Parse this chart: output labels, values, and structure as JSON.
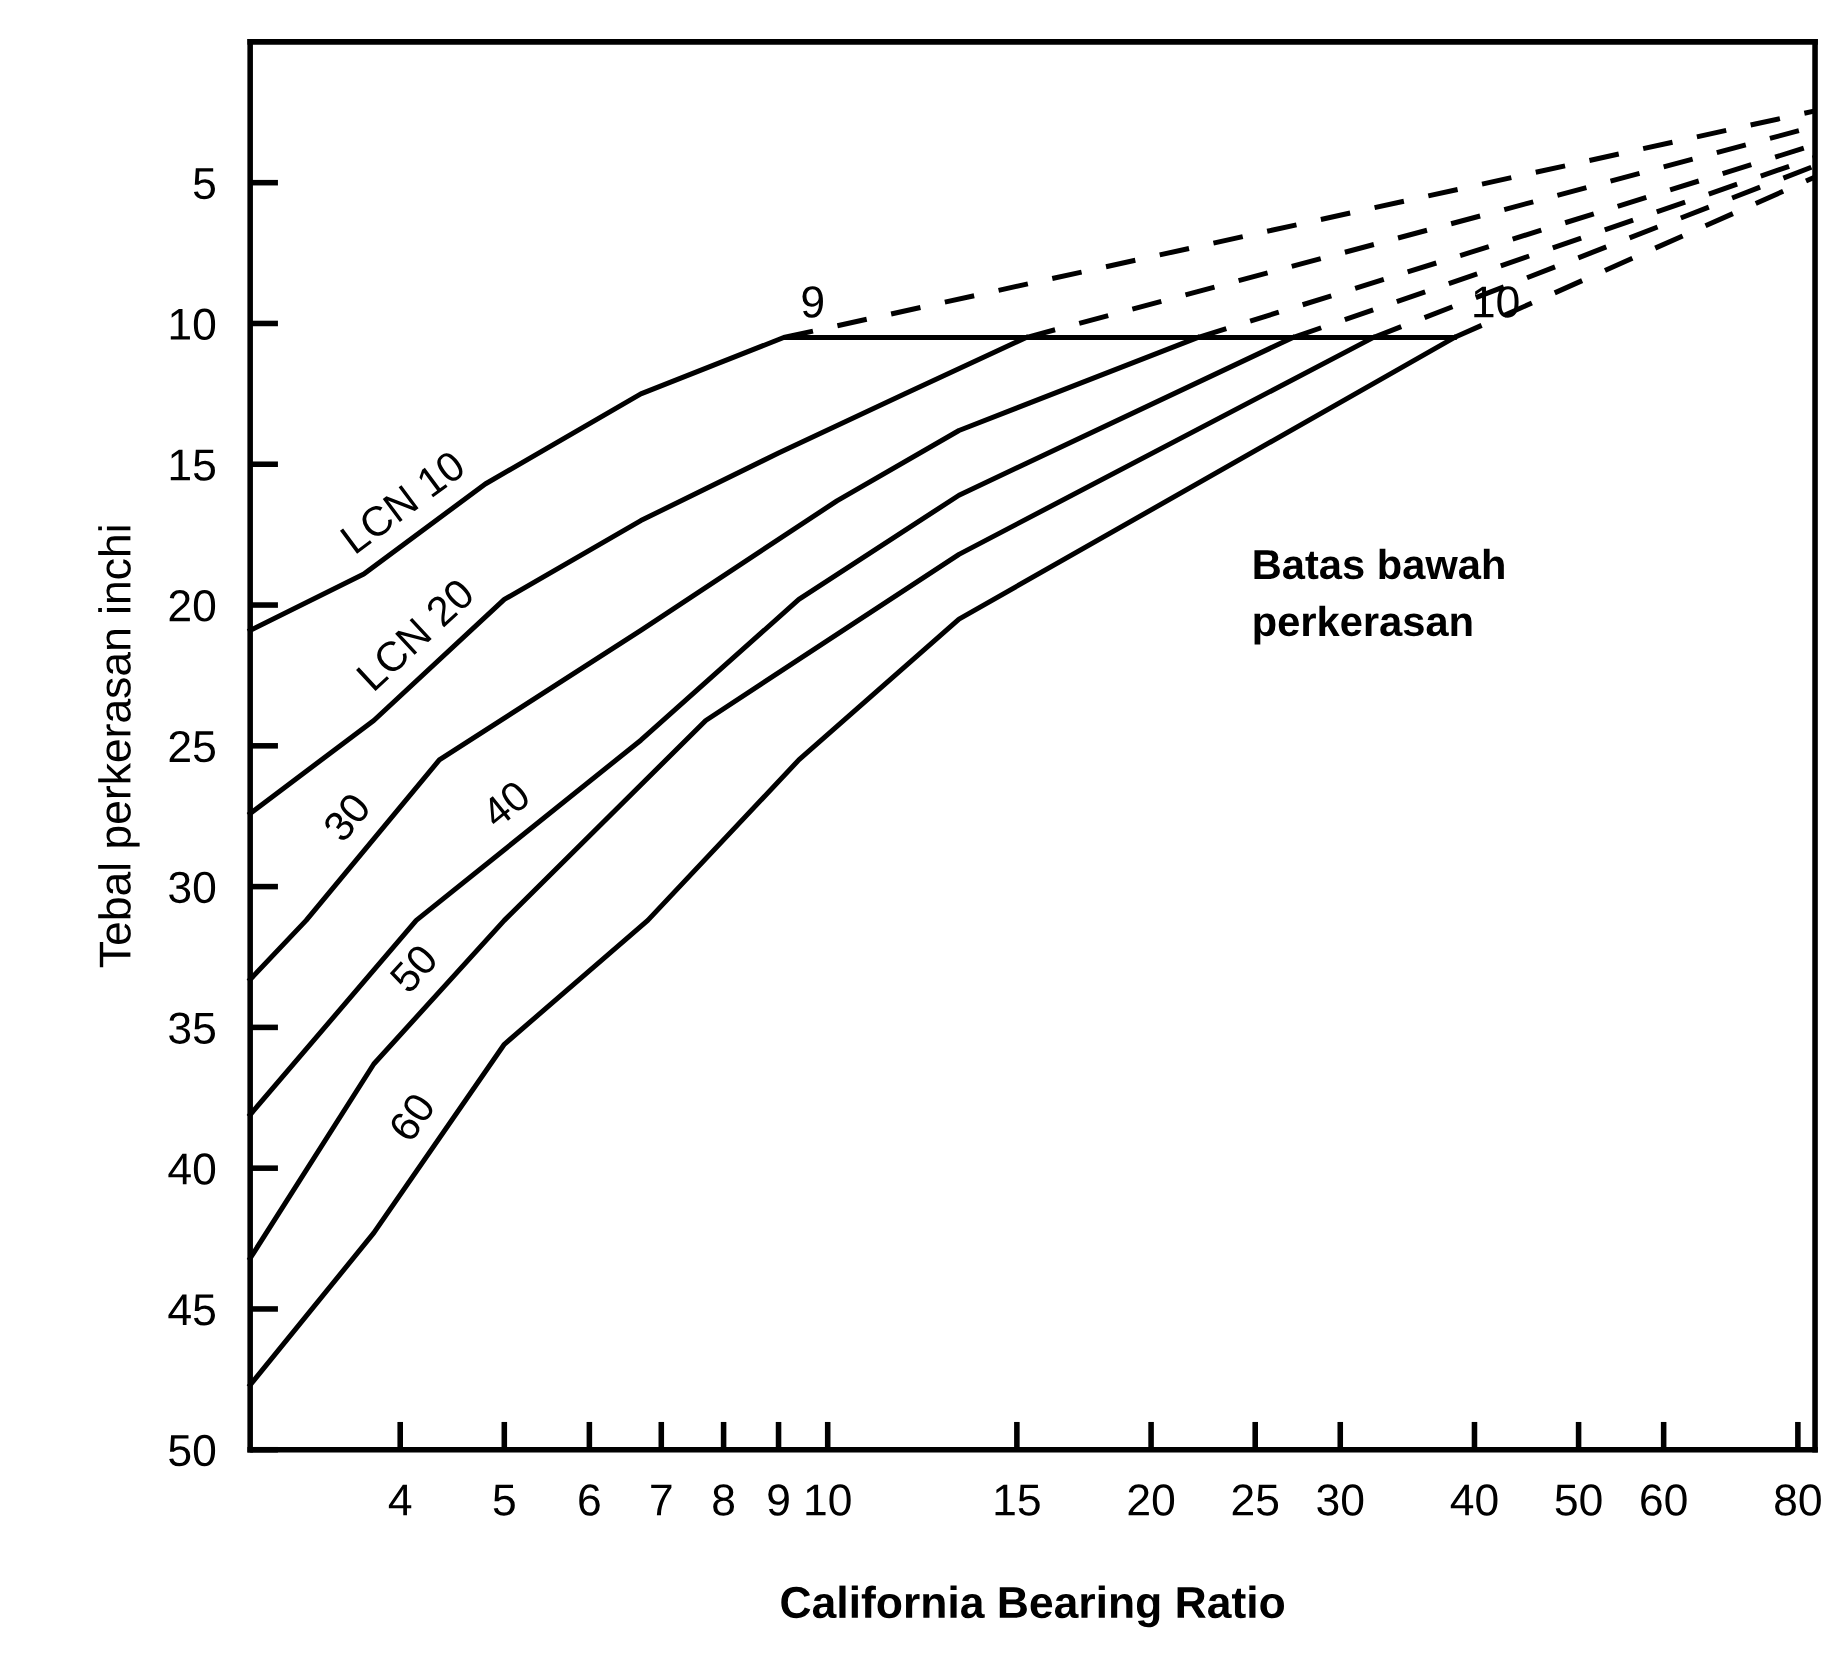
{
  "chart_data": {
    "type": "line",
    "xlabel": "California Bearing Ratio",
    "ylabel": "Tebal perkerasan inchi",
    "log": "x",
    "xlim": [
      2.9,
      83
    ],
    "ylim": [
      50,
      0
    ],
    "xticks": [
      4,
      5,
      6,
      7,
      8,
      9,
      10,
      15,
      20,
      25,
      30,
      40,
      50,
      60,
      80
    ],
    "yticks": [
      5,
      10,
      15,
      20,
      25,
      30,
      35,
      40,
      45,
      50
    ],
    "grid": false,
    "marker": "none",
    "series": [
      {
        "name": "LCN 10",
        "color": "#000000",
        "x": [
          2.9,
          3.7,
          4.8,
          6.7,
          9.1,
          38.3
        ],
        "values": [
          20.9,
          18.9,
          15.7,
          12.5,
          10.5,
          10.5
        ]
      },
      {
        "name": "LCN 20",
        "color": "#000000",
        "x": [
          2.9,
          3.78,
          5.0,
          6.7,
          9.0,
          11.8,
          15.3
        ],
        "values": [
          27.4,
          24.1,
          19.8,
          17.0,
          14.6,
          12.5,
          10.5
        ]
      },
      {
        "name": "30",
        "color": "#000000",
        "x": [
          2.9,
          3.27,
          4.35,
          6.7,
          10.2,
          13.25,
          22.1
        ],
        "values": [
          33.3,
          31.2,
          25.5,
          20.9,
          16.3,
          13.8,
          10.5
        ]
      },
      {
        "name": "40",
        "color": "#000000",
        "x": [
          2.9,
          4.14,
          6.7,
          9.4,
          13.25,
          27.1
        ],
        "values": [
          38.1,
          31.2,
          24.8,
          19.8,
          16.1,
          10.5
        ]
      },
      {
        "name": "50",
        "color": "#000000",
        "x": [
          2.9,
          3.78,
          5.0,
          7.7,
          13.25,
          32.2
        ],
        "values": [
          43.2,
          36.3,
          31.2,
          24.1,
          18.2,
          10.5
        ]
      },
      {
        "name": "60",
        "color": "#000000",
        "x": [
          2.9,
          3.78,
          5.0,
          6.8,
          9.4,
          13.25,
          38.3
        ],
        "values": [
          47.7,
          42.3,
          35.6,
          31.2,
          25.5,
          20.5,
          10.5
        ]
      },
      {
        "color": "#000000",
        "line_style": "dashed",
        "x": [
          9.1,
          83
        ],
        "values": [
          10.5,
          2.45
        ]
      },
      {
        "color": "#000000",
        "line_style": "dashed",
        "x": [
          15.3,
          83
        ],
        "values": [
          10.5,
          3.0
        ]
      },
      {
        "color": "#000000",
        "line_style": "dashed",
        "x": [
          22.1,
          83
        ],
        "values": [
          10.5,
          3.65
        ]
      },
      {
        "color": "#000000",
        "line_style": "dashed",
        "x": [
          27.1,
          83
        ],
        "values": [
          10.5,
          4.1
        ]
      },
      {
        "color": "#000000",
        "line_style": "dashed",
        "x": [
          32.2,
          83
        ],
        "values": [
          10.5,
          4.4
        ]
      },
      {
        "color": "#000000",
        "line_style": "dashed",
        "x": [
          38.3,
          83
        ],
        "values": [
          10.5,
          4.8
        ]
      }
    ],
    "annotations": [
      {
        "text": "9",
        "x": 9.1,
        "y": 10.5
      },
      {
        "text": "10",
        "x": 38.3,
        "y": 10.5
      },
      "Batas bawah\nperkerasan"
    ]
  }
}
